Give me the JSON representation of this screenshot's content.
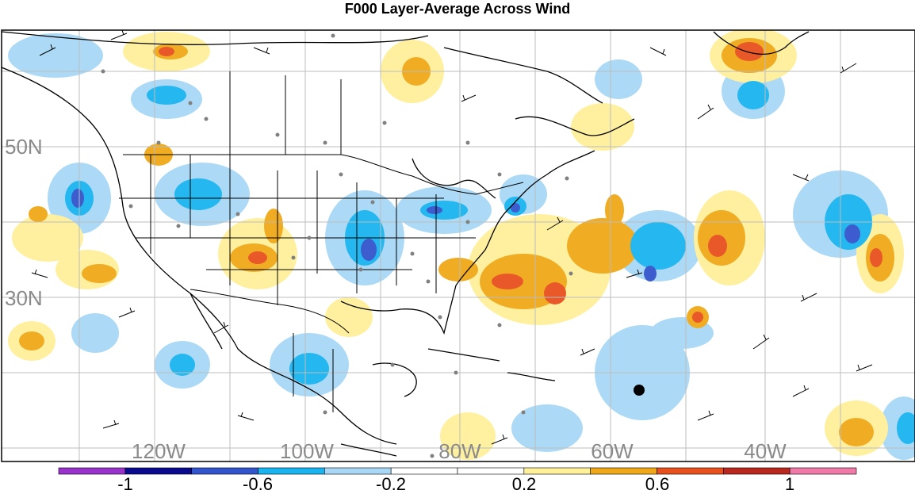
{
  "title": "F000 Layer-Average Across Wind",
  "longitude_labels": [
    "120W",
    "100W",
    "80W",
    "60W",
    "40W"
  ],
  "latitude_labels": [
    "50N",
    "30N"
  ],
  "colorbar": {
    "colors": [
      "#9933cc",
      "#0a0a8c",
      "#3355cc",
      "#19b4f0",
      "#a8d8f5",
      "#ffffff",
      "#ffffff",
      "#fff09a",
      "#f0a818",
      "#e8501e",
      "#b8281e",
      "#f07aa8"
    ],
    "tick_labels": [
      "-1",
      "-0.6",
      "-0.2",
      "0.2",
      "0.6",
      "1"
    ]
  }
}
